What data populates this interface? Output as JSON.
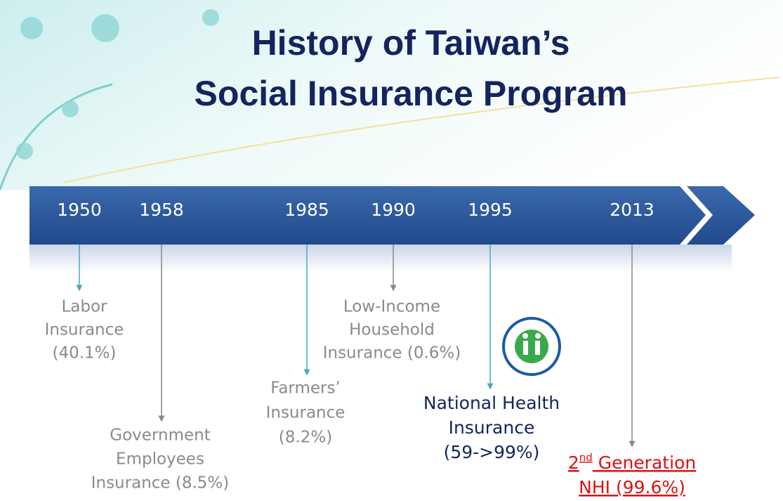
{
  "title": [
    "History of Taiwan’s",
    "Social Insurance Program"
  ],
  "events": [
    {
      "year": "1950",
      "label": [
        "Labor",
        "Insurance",
        "(40.1%)"
      ]
    },
    {
      "year": "1958",
      "label": [
        "Government",
        "Employees",
        "Insurance (8.5%)"
      ]
    },
    {
      "year": "1985",
      "label": [
        "Farmers’",
        "Insurance",
        "(8.2%)"
      ]
    },
    {
      "year": "1990",
      "label": [
        "Low-Income",
        "Household",
        "Insurance (0.6%)"
      ]
    },
    {
      "year": "1995",
      "label": [
        "National Health",
        "Insurance",
        "(59->99%)"
      ]
    },
    {
      "year": "2013",
      "label": [
        [
          {
            "text": "2"
          },
          {
            "text": "nd",
            "sup": true
          },
          {
            "text": " Generation"
          }
        ],
        "NHI (99.6%)"
      ]
    }
  ]
}
